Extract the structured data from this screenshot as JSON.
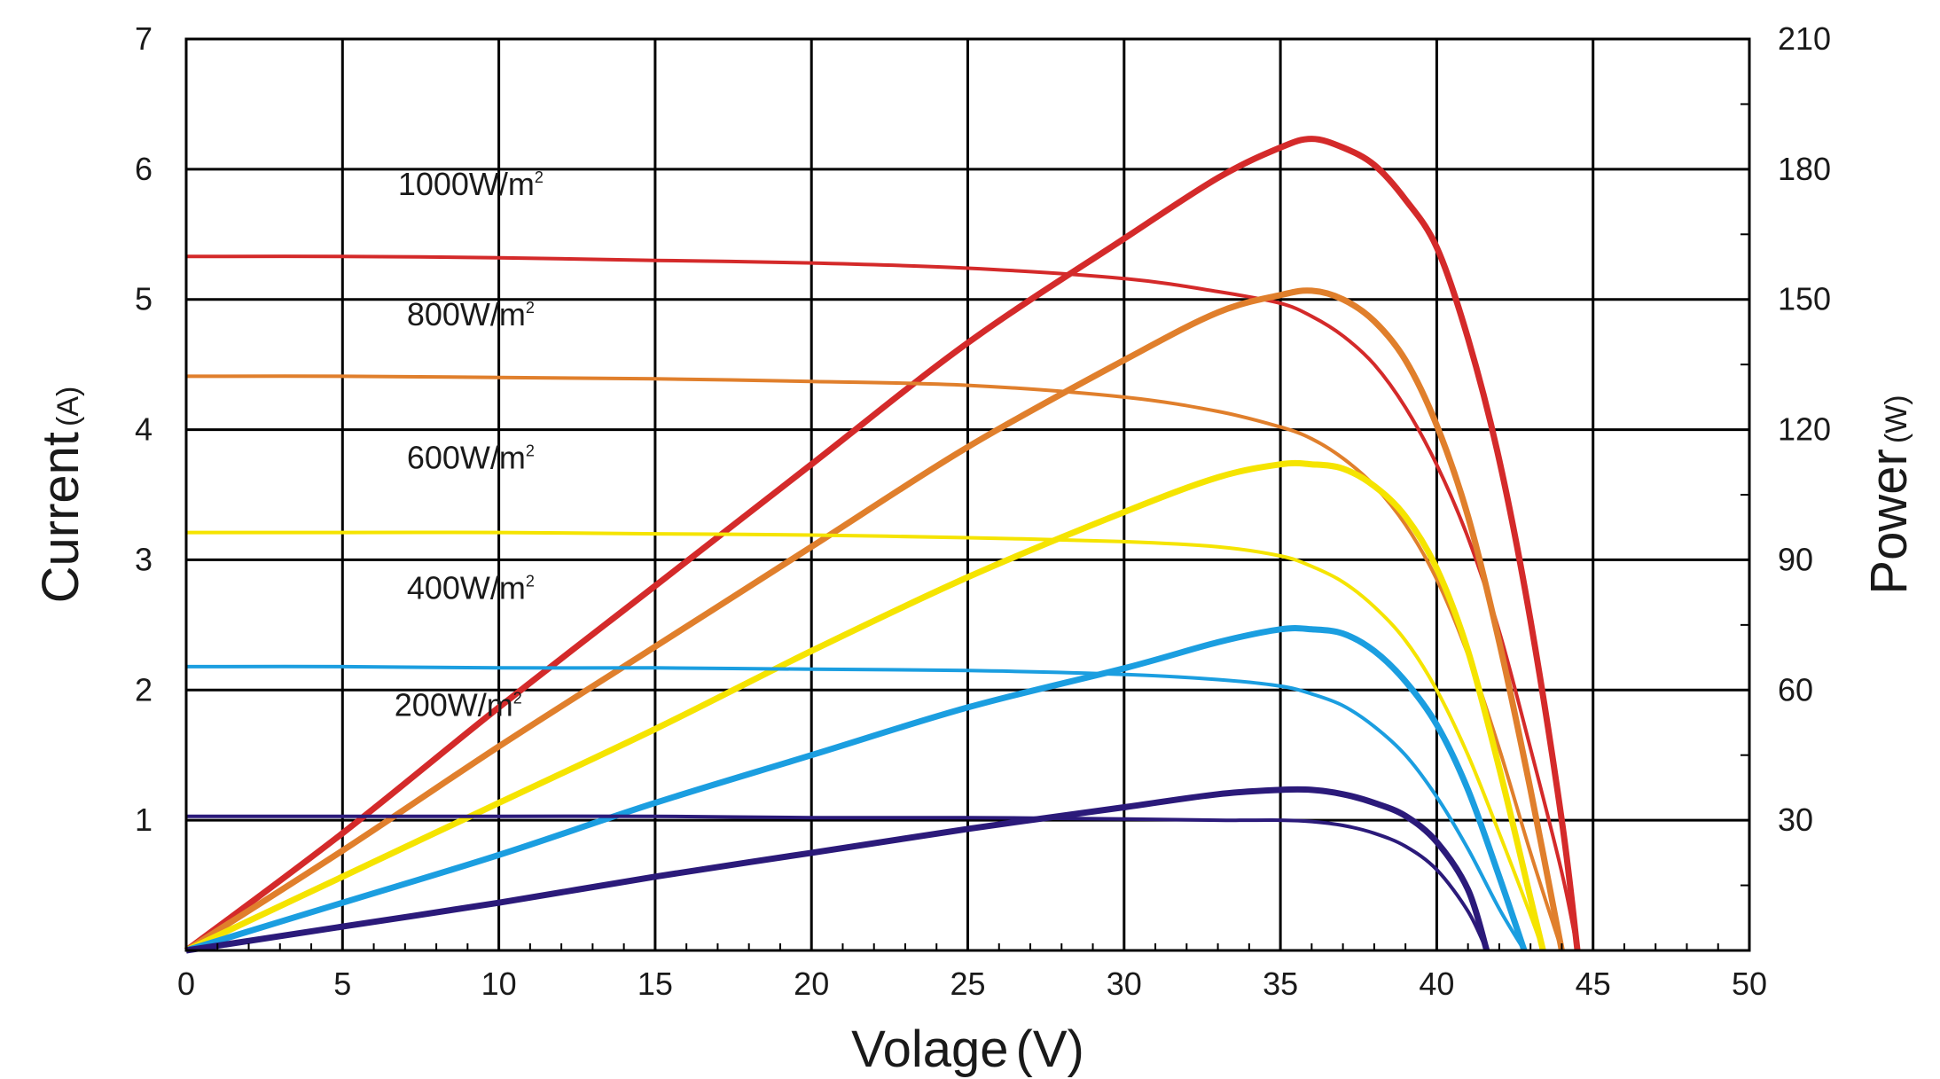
{
  "chart_data": {
    "type": "line",
    "xlabel": "Volage",
    "xlabel_unit": "(V)",
    "ylabel_left": "Current",
    "ylabel_left_unit": "(A)",
    "ylabel_right": "Power",
    "ylabel_right_unit": "(W)",
    "xlim": [
      0,
      50
    ],
    "ylim_left": [
      0,
      7
    ],
    "ylim_right": [
      0,
      210
    ],
    "grid": true,
    "x_ticks": [
      "0",
      "5",
      "10",
      "15",
      "20",
      "25",
      "30",
      "35",
      "40",
      "45",
      "50"
    ],
    "y_left_ticks": [
      "1",
      "2",
      "3",
      "4",
      "5",
      "6",
      "7"
    ],
    "y_right_ticks": [
      "30",
      "60",
      "90",
      "120",
      "150",
      "180",
      "210"
    ],
    "annotations": [
      {
        "text": "1000W/m",
        "sup": "2",
        "color": "#d42a2a"
      },
      {
        "text": "800W/m",
        "sup": "2",
        "color": "#e07f2c"
      },
      {
        "text": "600W/m",
        "sup": "2",
        "color": "#f5e400"
      },
      {
        "text": "400W/m",
        "sup": "2",
        "color": "#1b9ee0"
      },
      {
        "text": "200W/m",
        "sup": "2",
        "color": "#2b1a7a"
      }
    ],
    "series": [
      {
        "irradiance": "1000W/m2",
        "color": "#d42a2a",
        "current": {
          "x": [
            0,
            5,
            10,
            15,
            20,
            25,
            30,
            33,
            35,
            36,
            37,
            38,
            39,
            40,
            41,
            42,
            43,
            44,
            44.5
          ],
          "y": [
            5.33,
            5.33,
            5.32,
            5.3,
            5.28,
            5.24,
            5.16,
            5.06,
            4.97,
            4.87,
            4.72,
            4.5,
            4.17,
            3.73,
            3.17,
            2.45,
            1.55,
            0.6,
            0
          ]
        },
        "power": {
          "x": [
            0,
            5,
            10,
            15,
            20,
            25,
            30,
            33,
            35,
            36,
            37,
            38,
            39,
            40,
            41,
            42,
            43,
            44,
            44.5
          ],
          "y": [
            0,
            27,
            56,
            84,
            112,
            140,
            164,
            178,
            185,
            187,
            185,
            181,
            173,
            162,
            141,
            113,
            76,
            30,
            0
          ]
        }
      },
      {
        "irradiance": "800W/m2",
        "color": "#e07f2c",
        "current": {
          "x": [
            0,
            5,
            10,
            15,
            20,
            25,
            30,
            33,
            35,
            36,
            37,
            38,
            39,
            40,
            41,
            42,
            43,
            44
          ],
          "y": [
            4.41,
            4.41,
            4.4,
            4.39,
            4.37,
            4.34,
            4.25,
            4.14,
            4.02,
            3.93,
            3.78,
            3.57,
            3.27,
            2.85,
            2.27,
            1.55,
            0.75,
            0
          ]
        },
        "power": {
          "x": [
            0,
            5,
            10,
            15,
            20,
            25,
            30,
            33,
            35,
            36,
            37,
            38,
            39,
            40,
            41,
            42,
            43,
            44
          ],
          "y": [
            0,
            23,
            47,
            70,
            93,
            116,
            136,
            147,
            151,
            152,
            150,
            145,
            136,
            121,
            100,
            71,
            37,
            0
          ]
        }
      },
      {
        "irradiance": "600W/m2",
        "color": "#f5e400",
        "current": {
          "x": [
            0,
            5,
            10,
            15,
            20,
            25,
            30,
            33,
            35,
            36,
            37,
            38,
            39,
            40,
            41,
            42,
            43,
            43.4
          ],
          "y": [
            3.21,
            3.21,
            3.21,
            3.2,
            3.19,
            3.17,
            3.14,
            3.1,
            3.03,
            2.95,
            2.83,
            2.64,
            2.38,
            2.0,
            1.5,
            0.9,
            0.27,
            0
          ]
        },
        "power": {
          "x": [
            0,
            5,
            10,
            15,
            20,
            25,
            30,
            33,
            35,
            36,
            37,
            38,
            39,
            40,
            41,
            42,
            43,
            43.4
          ],
          "y": [
            0,
            17,
            34,
            51,
            69,
            86,
            101,
            109,
            112,
            112,
            111,
            107,
            100,
            88,
            69,
            42,
            12,
            0
          ]
        }
      },
      {
        "irradiance": "400W/m2",
        "color": "#1b9ee0",
        "current": {
          "x": [
            0,
            5,
            10,
            15,
            20,
            25,
            30,
            33,
            35,
            36,
            37,
            38,
            39,
            40,
            41,
            42,
            42.8
          ],
          "y": [
            2.18,
            2.18,
            2.17,
            2.17,
            2.16,
            2.15,
            2.12,
            2.08,
            2.03,
            1.97,
            1.88,
            1.72,
            1.5,
            1.18,
            0.78,
            0.32,
            0
          ]
        },
        "power": {
          "x": [
            0,
            5,
            10,
            15,
            20,
            25,
            30,
            33,
            35,
            36,
            37,
            38,
            39,
            40,
            41,
            42,
            42.8
          ],
          "y": [
            0,
            11,
            22,
            34,
            45,
            56,
            65,
            71,
            74,
            74,
            73,
            69,
            62,
            52,
            37,
            17,
            0
          ]
        }
      },
      {
        "irradiance": "200W/m2",
        "color": "#2b1a7a",
        "current": {
          "x": [
            0,
            5,
            10,
            15,
            20,
            25,
            30,
            33,
            35,
            36,
            37,
            38,
            39,
            40,
            41,
            41.6
          ],
          "y": [
            1.03,
            1.03,
            1.03,
            1.03,
            1.02,
            1.02,
            1.01,
            1.0,
            1.0,
            0.99,
            0.96,
            0.9,
            0.8,
            0.62,
            0.3,
            0
          ]
        },
        "power": {
          "x": [
            0,
            5,
            10,
            15,
            20,
            25,
            30,
            33,
            35,
            36,
            37,
            38,
            39,
            40,
            41,
            41.6
          ],
          "y": [
            0,
            5.5,
            11,
            17,
            22.5,
            28,
            33,
            36,
            37,
            37,
            36,
            34,
            31,
            25,
            14,
            0
          ]
        }
      }
    ]
  }
}
